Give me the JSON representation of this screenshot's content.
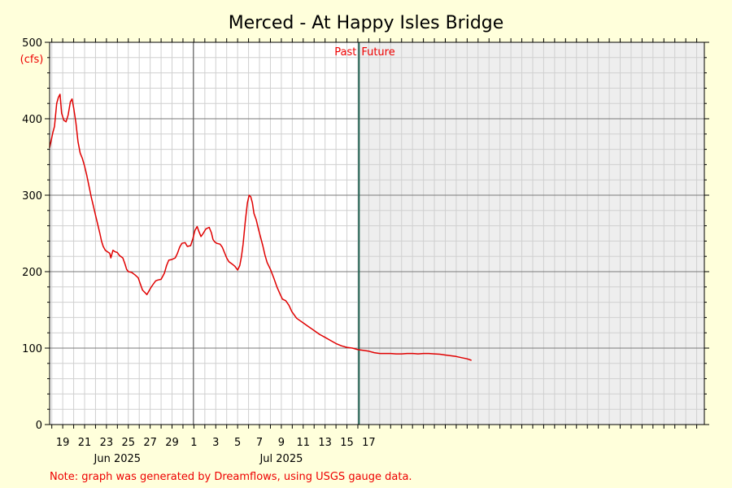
{
  "chart_data": {
    "type": "line",
    "title": "Merced - At Happy Isles Bridge",
    "ylabel": "(cfs)",
    "ylim": [
      0,
      500
    ],
    "y_ticks": [
      0,
      100,
      200,
      300,
      400,
      500
    ],
    "xlim_days": [
      -1.2,
      58.7
    ],
    "x_ticks": [
      {
        "day": 0,
        "label": "19"
      },
      {
        "day": 2,
        "label": "21"
      },
      {
        "day": 4,
        "label": "23"
      },
      {
        "day": 6,
        "label": "25"
      },
      {
        "day": 8,
        "label": "27"
      },
      {
        "day": 10,
        "label": "29"
      },
      {
        "day": 12,
        "label": "1"
      },
      {
        "day": 14,
        "label": "3"
      },
      {
        "day": 16,
        "label": "5"
      },
      {
        "day": 18,
        "label": "7"
      },
      {
        "day": 20,
        "label": "9"
      },
      {
        "day": 22,
        "label": "11"
      },
      {
        "day": 24,
        "label": "13"
      },
      {
        "day": 26,
        "label": "15"
      },
      {
        "day": 28,
        "label": "17"
      }
    ],
    "month_labels": [
      {
        "day": 5,
        "label": "Jun 2025"
      },
      {
        "day": 20,
        "label": "Jul 2025"
      }
    ],
    "month_divider_day": 11.95,
    "now_day": 27.1,
    "past_label": "Past",
    "future_label": "Future",
    "grid": true,
    "series": [
      {
        "color": "#e00000",
        "points": [
          [
            -1.2,
            362
          ],
          [
            -0.9,
            382
          ],
          [
            -0.75,
            390
          ],
          [
            -0.55,
            420
          ],
          [
            -0.4,
            428
          ],
          [
            -0.25,
            432
          ],
          [
            -0.1,
            407
          ],
          [
            0.1,
            398
          ],
          [
            0.3,
            396
          ],
          [
            0.5,
            405
          ],
          [
            0.7,
            422
          ],
          [
            0.85,
            426
          ],
          [
            1.0,
            414
          ],
          [
            1.2,
            395
          ],
          [
            1.4,
            370
          ],
          [
            1.6,
            355
          ],
          [
            1.8,
            348
          ],
          [
            2.0,
            338
          ],
          [
            2.2,
            326
          ],
          [
            2.4,
            312
          ],
          [
            2.6,
            298
          ],
          [
            2.8,
            286
          ],
          [
            3.0,
            274
          ],
          [
            3.2,
            262
          ],
          [
            3.4,
            250
          ],
          [
            3.55,
            240
          ],
          [
            3.7,
            233
          ],
          [
            3.9,
            228
          ],
          [
            4.1,
            226
          ],
          [
            4.3,
            224
          ],
          [
            4.4,
            218
          ],
          [
            4.6,
            228
          ],
          [
            4.8,
            226
          ],
          [
            5.0,
            225
          ],
          [
            5.2,
            221
          ],
          [
            5.5,
            218
          ],
          [
            5.7,
            210
          ],
          [
            5.85,
            203
          ],
          [
            6.0,
            200
          ],
          [
            6.3,
            199
          ],
          [
            6.6,
            196
          ],
          [
            6.9,
            192
          ],
          [
            7.1,
            184
          ],
          [
            7.3,
            176
          ],
          [
            7.5,
            173
          ],
          [
            7.7,
            170
          ],
          [
            7.9,
            175
          ],
          [
            8.1,
            180
          ],
          [
            8.3,
            184
          ],
          [
            8.5,
            188
          ],
          [
            8.7,
            189
          ],
          [
            9.0,
            190
          ],
          [
            9.3,
            198
          ],
          [
            9.5,
            208
          ],
          [
            9.7,
            215
          ],
          [
            10.0,
            216
          ],
          [
            10.3,
            218
          ],
          [
            10.5,
            224
          ],
          [
            10.7,
            232
          ],
          [
            10.9,
            237
          ],
          [
            11.2,
            238
          ],
          [
            11.4,
            233
          ],
          [
            11.7,
            234
          ],
          [
            11.9,
            243
          ],
          [
            12.1,
            254
          ],
          [
            12.3,
            259
          ],
          [
            12.45,
            253
          ],
          [
            12.65,
            246
          ],
          [
            12.85,
            250
          ],
          [
            13.1,
            256
          ],
          [
            13.4,
            258
          ],
          [
            13.6,
            251
          ],
          [
            13.75,
            242
          ],
          [
            13.9,
            239
          ],
          [
            14.1,
            237
          ],
          [
            14.4,
            236
          ],
          [
            14.6,
            232
          ],
          [
            14.8,
            225
          ],
          [
            15.0,
            218
          ],
          [
            15.2,
            213
          ],
          [
            15.5,
            210
          ],
          [
            15.75,
            207
          ],
          [
            16.0,
            202
          ],
          [
            16.2,
            208
          ],
          [
            16.35,
            220
          ],
          [
            16.5,
            236
          ],
          [
            16.7,
            266
          ],
          [
            16.9,
            290
          ],
          [
            17.05,
            300
          ],
          [
            17.2,
            298
          ],
          [
            17.35,
            290
          ],
          [
            17.5,
            276
          ],
          [
            17.7,
            268
          ],
          [
            17.9,
            256
          ],
          [
            18.1,
            245
          ],
          [
            18.3,
            234
          ],
          [
            18.5,
            222
          ],
          [
            18.7,
            212
          ],
          [
            19.0,
            203
          ],
          [
            19.3,
            192
          ],
          [
            19.6,
            180
          ],
          [
            19.9,
            170
          ],
          [
            20.1,
            164
          ],
          [
            20.4,
            162
          ],
          [
            20.7,
            156
          ],
          [
            20.95,
            148
          ],
          [
            21.2,
            143
          ],
          [
            21.4,
            139
          ],
          [
            21.7,
            136
          ],
          [
            22.0,
            133
          ],
          [
            22.5,
            128
          ],
          [
            23.0,
            123
          ],
          [
            23.5,
            118
          ],
          [
            24.0,
            114
          ],
          [
            24.5,
            110
          ],
          [
            25.0,
            106
          ],
          [
            25.5,
            103
          ],
          [
            26.0,
            101
          ],
          [
            26.5,
            100
          ],
          [
            27.0,
            98
          ],
          [
            27.5,
            97
          ],
          [
            28.0,
            96
          ],
          [
            28.5,
            94
          ],
          [
            29.0,
            93
          ],
          [
            29.5,
            93
          ],
          [
            30.0,
            93
          ],
          [
            30.5,
            92.5
          ],
          [
            31.0,
            92.5
          ],
          [
            31.5,
            93
          ],
          [
            32.0,
            93
          ],
          [
            32.5,
            92.5
          ],
          [
            33.0,
            93
          ],
          [
            33.5,
            93
          ],
          [
            34.0,
            92.5
          ],
          [
            34.5,
            92
          ],
          [
            35.0,
            91
          ],
          [
            35.5,
            90
          ],
          [
            36.0,
            89
          ],
          [
            36.5,
            87.5
          ],
          [
            37.0,
            86
          ],
          [
            37.4,
            84
          ]
        ]
      }
    ]
  },
  "footer_note": "Note: graph was generated by Dreamflows, using USGS gauge data."
}
